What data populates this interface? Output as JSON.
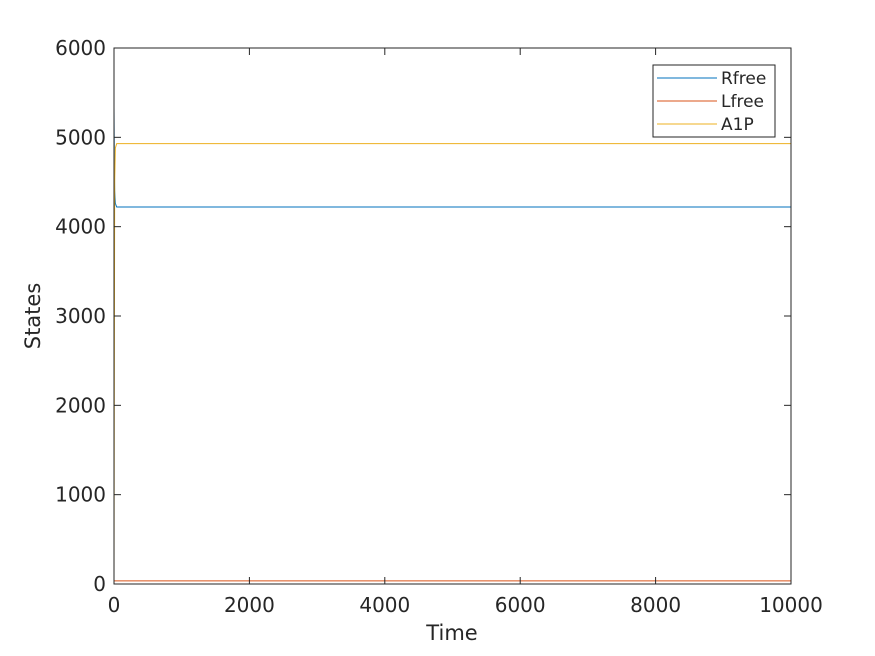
{
  "chart_data": {
    "type": "line",
    "title": "",
    "xlabel": "Time",
    "ylabel": "States",
    "xlim": [
      0,
      10000
    ],
    "ylim": [
      0,
      6000
    ],
    "xticks": [
      0,
      2000,
      4000,
      6000,
      8000,
      10000
    ],
    "yticks": [
      0,
      1000,
      2000,
      3000,
      4000,
      5000,
      6000
    ],
    "xtick_labels": [
      "0",
      "2000",
      "4000",
      "6000",
      "8000",
      "10000"
    ],
    "ytick_labels": [
      "0",
      "1000",
      "2000",
      "3000",
      "4000",
      "5000",
      "6000"
    ],
    "grid": false,
    "legend_position": "top-right",
    "series": [
      {
        "name": "Rfree",
        "color": "#0072BD",
        "x": [
          0,
          5,
          10,
          20,
          40,
          10000
        ],
        "y": [
          5350,
          4700,
          4400,
          4260,
          4220,
          4220
        ]
      },
      {
        "name": "Lfree",
        "color": "#D95319",
        "x": [
          0,
          5,
          10000
        ],
        "y": [
          40,
          35,
          35
        ]
      },
      {
        "name": "A1P",
        "color": "#EDB120",
        "x": [
          0,
          5,
          10,
          20,
          40,
          10000
        ],
        "y": [
          0,
          2500,
          4500,
          4880,
          4930,
          4930
        ]
      }
    ]
  }
}
